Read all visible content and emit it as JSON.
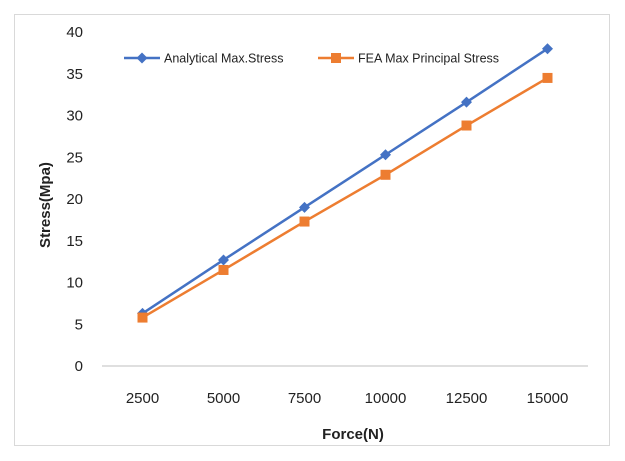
{
  "chart_data": {
    "type": "line",
    "title": "",
    "xlabel": "Force(N)",
    "ylabel": "Stress(Mpa)",
    "categories": [
      "2500",
      "5000",
      "7500",
      "10000",
      "12500",
      "15000"
    ],
    "ylim": [
      0,
      40
    ],
    "yticks": [
      "0",
      "5",
      "10",
      "15",
      "20",
      "25",
      "30",
      "35",
      "40"
    ],
    "grid": false,
    "legend_position": "top",
    "series": [
      {
        "name": "Analytical Max.Stress",
        "values": [
          6.3,
          12.7,
          19.0,
          25.3,
          31.6,
          38.0
        ],
        "color": "#4472c4",
        "marker": "diamond"
      },
      {
        "name": "FEA Max Principal Stress",
        "values": [
          5.8,
          11.5,
          17.3,
          22.9,
          28.8,
          34.5
        ],
        "color": "#ed7d31",
        "marker": "square"
      }
    ]
  }
}
